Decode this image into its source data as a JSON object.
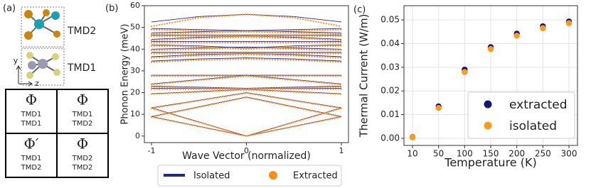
{
  "diagram": {
    "label": "(a)",
    "layer_labels": [
      "TMD2",
      "TMD1"
    ],
    "axis_labels": [
      "y",
      "z"
    ],
    "matrix": [
      [
        {
          "symbol": "Φ",
          "top": "TMD1",
          "bottom": "TMD1"
        },
        {
          "symbol": "Φ",
          "top": "TMD1",
          "bottom": "TMD2"
        }
      ],
      [
        {
          "symbol": "Φ′",
          "top": "TMD1",
          "bottom": "TMD2"
        },
        {
          "symbol": "Φ",
          "top": "TMD2",
          "bottom": "TMD2"
        }
      ]
    ]
  },
  "chart_data": [
    {
      "type": "dispersion",
      "label": "(b)",
      "xlabel": "Wave Vector (normalized)",
      "ylabel": "Phonon Energy (meV)",
      "x": [
        -1,
        -0.5,
        0,
        0.5,
        1
      ],
      "xlim": [
        -1.075,
        1.075
      ],
      "xticks": [
        -1,
        0,
        1
      ],
      "ylim": [
        -3,
        60
      ],
      "yticks": [
        0,
        10,
        20,
        30,
        40,
        50,
        60
      ],
      "grid": false,
      "legend": "bottom",
      "series": [
        {
          "name": "Isolated",
          "color": "#1f2a8c",
          "style": "line",
          "branches": [
            [
              9,
              4.5,
              0,
              4.5,
              9
            ],
            [
              13,
              6.5,
              0,
              6.5,
              13
            ],
            [
              9,
              13.5,
              18,
              13.5,
              9
            ],
            [
              13,
              16.5,
              20,
              16.5,
              13
            ],
            [
              19.5,
              20.5,
              21.5,
              20.5,
              19.5
            ],
            [
              22,
              22,
              22,
              22,
              22
            ],
            [
              23,
              22.5,
              22,
              22.5,
              23
            ],
            [
              24,
              26,
              28,
              26,
              24
            ],
            [
              28,
              28,
              28,
              28,
              28
            ],
            [
              34.5,
              35.5,
              36,
              35.5,
              34.5
            ],
            [
              36.5,
              37.5,
              38,
              37.5,
              36.5
            ],
            [
              38.5,
              38.5,
              38.5,
              38.5,
              38.5
            ],
            [
              40,
              40.5,
              41,
              40.5,
              40
            ],
            [
              42,
              41.5,
              40.5,
              41.5,
              42
            ],
            [
              43.5,
              43.5,
              43.5,
              43.5,
              43.5
            ],
            [
              44.5,
              45.5,
              46,
              45.5,
              44.5
            ],
            [
              46.5,
              46.5,
              46.5,
              46.5,
              46.5
            ],
            [
              47.5,
              48,
              48.5,
              48,
              47.5
            ],
            [
              49.5,
              49,
              48.5,
              49,
              49.5
            ],
            [
              52.5,
              55,
              56,
              55,
              52.5
            ]
          ]
        },
        {
          "name": "Extracted",
          "color": "#ff8c1a",
          "style": "dots",
          "branches": [
            [
              8.8,
              4.4,
              0,
              4.4,
              8.8
            ],
            [
              12.8,
              6.4,
              0,
              6.4,
              12.8
            ],
            [
              8.8,
              13.3,
              17.8,
              13.3,
              8.8
            ],
            [
              12.8,
              16.3,
              19.8,
              16.3,
              12.8
            ],
            [
              19.3,
              20.3,
              21.3,
              20.3,
              19.3
            ],
            [
              21.6,
              21.6,
              21.6,
              21.6,
              21.6
            ],
            [
              22.6,
              22.2,
              21.8,
              22.2,
              22.6
            ],
            [
              23.7,
              25.7,
              27.6,
              25.7,
              23.7
            ],
            [
              27.6,
              27.6,
              27.6,
              27.6,
              27.6
            ],
            [
              34,
              35,
              35.5,
              35,
              34
            ],
            [
              36,
              37,
              37.5,
              37,
              36
            ],
            [
              38,
              38,
              38,
              38,
              38
            ],
            [
              39.5,
              40,
              40.5,
              40,
              39.5
            ],
            [
              41.5,
              41,
              40,
              41,
              41.5
            ],
            [
              43,
              43,
              43,
              43,
              43
            ],
            [
              44,
              45,
              45.5,
              45,
              44
            ],
            [
              46,
              46,
              46,
              46,
              46
            ],
            [
              47,
              47.5,
              48,
              47.5,
              47
            ],
            [
              49,
              48.5,
              48,
              48.5,
              49
            ],
            [
              50.5,
              54.5,
              56,
              54.5,
              50.5
            ]
          ]
        }
      ]
    },
    {
      "type": "scatter",
      "label": "(c)",
      "xlabel": "Temperature (K)",
      "ylabel": "Thermal Current (W/m)",
      "categories": [
        10,
        50,
        100,
        150,
        200,
        250,
        300
      ],
      "ylim": [
        -0.003,
        0.056
      ],
      "yticks": [
        {
          "value": 0,
          "label": "0.00"
        },
        {
          "value": 0.01,
          "label": "0.01"
        },
        {
          "value": 0.02,
          "label": "0.02"
        },
        {
          "value": 0.03,
          "label": "0.03"
        },
        {
          "value": 0.04,
          "label": "0.04"
        },
        {
          "value": 0.05,
          "label": "0.05"
        }
      ],
      "grid": true,
      "legend": "lower right",
      "series": [
        {
          "name": "extracted",
          "color": "#14147a",
          "values": [
            0.0005,
            0.0135,
            0.029,
            0.0385,
            0.0442,
            0.0473,
            0.0493
          ]
        },
        {
          "name": "isolated",
          "color": "#ff9a1a",
          "values": [
            0.0004,
            0.0128,
            0.028,
            0.0377,
            0.0433,
            0.0465,
            0.0486
          ]
        }
      ]
    }
  ]
}
